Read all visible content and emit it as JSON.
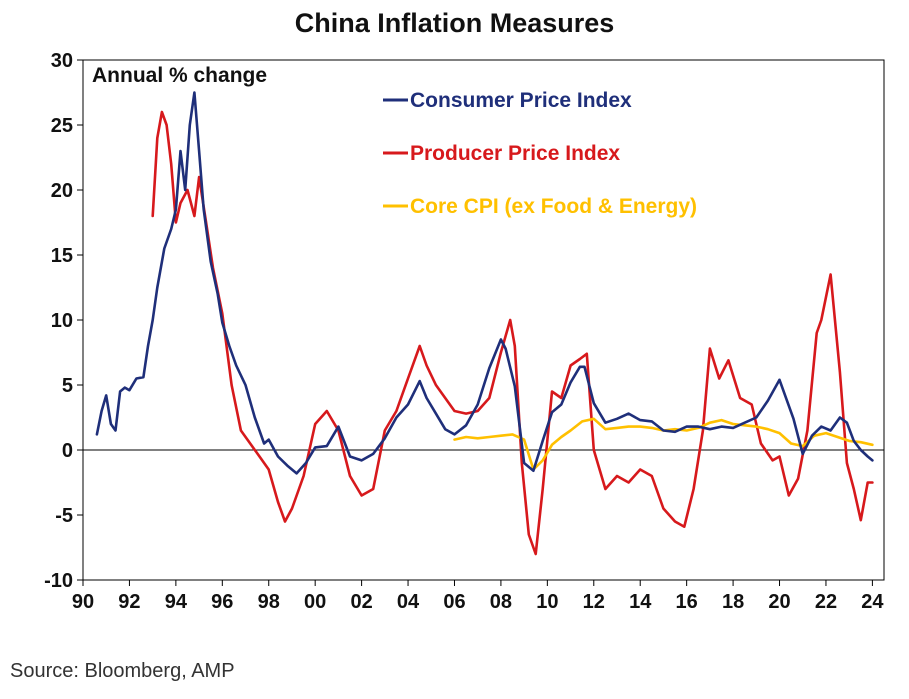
{
  "title": "China Inflation Measures",
  "source": "Source: Bloomberg, AMP",
  "chart_data": {
    "type": "line",
    "title": "China Inflation Measures",
    "ylabel": "Annual % change",
    "xlabel": "",
    "ylim": [
      -10,
      30
    ],
    "xlim": [
      1990,
      2024.5
    ],
    "y_ticks": [
      30,
      25,
      20,
      15,
      10,
      5,
      0,
      -5,
      -10
    ],
    "x_tick_labels": [
      {
        "year": 1990,
        "label": "90"
      },
      {
        "year": 1992,
        "label": "92"
      },
      {
        "year": 1994,
        "label": "94"
      },
      {
        "year": 1996,
        "label": "96"
      },
      {
        "year": 1998,
        "label": "98"
      },
      {
        "year": 2000,
        "label": "00"
      },
      {
        "year": 2002,
        "label": "02"
      },
      {
        "year": 2004,
        "label": "04"
      },
      {
        "year": 2006,
        "label": "06"
      },
      {
        "year": 2008,
        "label": "08"
      },
      {
        "year": 2010,
        "label": "10"
      },
      {
        "year": 2012,
        "label": "12"
      },
      {
        "year": 2014,
        "label": "14"
      },
      {
        "year": 2016,
        "label": "16"
      },
      {
        "year": 2018,
        "label": "18"
      },
      {
        "year": 2020,
        "label": "20"
      },
      {
        "year": 2022,
        "label": "22"
      },
      {
        "year": 2024,
        "label": "24"
      }
    ],
    "grid": false,
    "legend_position": "top-center",
    "series": [
      {
        "name": "Consumer Price Index",
        "color": "#1f2f7a",
        "x": [
          1990.6,
          1990.8,
          1991.0,
          1991.2,
          1991.4,
          1991.6,
          1991.8,
          1992.0,
          1992.3,
          1992.6,
          1992.8,
          1993.0,
          1993.2,
          1993.5,
          1993.8,
          1994.0,
          1994.2,
          1994.4,
          1994.6,
          1994.8,
          1995.0,
          1995.2,
          1995.5,
          1995.8,
          1996.0,
          1996.3,
          1996.6,
          1997.0,
          1997.4,
          1997.8,
          1998.0,
          1998.4,
          1998.8,
          1999.2,
          1999.6,
          2000.0,
          2000.5,
          2001.0,
          2001.5,
          2002.0,
          2002.5,
          2003.0,
          2003.5,
          2004.0,
          2004.5,
          2004.8,
          2005.2,
          2005.6,
          2006.0,
          2006.5,
          2007.0,
          2007.5,
          2008.0,
          2008.2,
          2008.6,
          2009.0,
          2009.4,
          2009.8,
          2010.2,
          2010.6,
          2011.0,
          2011.4,
          2011.6,
          2012.0,
          2012.5,
          2013.0,
          2013.5,
          2014.0,
          2014.5,
          2015.0,
          2015.5,
          2016.0,
          2016.5,
          2017.0,
          2017.5,
          2018.0,
          2018.5,
          2019.0,
          2019.5,
          2020.0,
          2020.3,
          2020.6,
          2021.0,
          2021.4,
          2021.8,
          2022.2,
          2022.6,
          2022.9,
          2023.2,
          2023.5,
          2023.8,
          2024.0
        ],
        "values": [
          1.2,
          3.0,
          4.2,
          2.0,
          1.5,
          4.5,
          4.8,
          4.6,
          5.5,
          5.6,
          8.0,
          10.0,
          12.5,
          15.5,
          17.0,
          18.5,
          23.0,
          20.0,
          25.0,
          27.5,
          23.0,
          18.5,
          14.5,
          12.0,
          9.8,
          8.0,
          6.5,
          5.0,
          2.5,
          0.5,
          0.8,
          -0.5,
          -1.2,
          -1.8,
          -1.0,
          0.2,
          0.3,
          1.8,
          -0.5,
          -0.8,
          -0.3,
          0.9,
          2.5,
          3.5,
          5.3,
          4.0,
          2.8,
          1.6,
          1.2,
          1.9,
          3.5,
          6.3,
          8.5,
          7.8,
          4.9,
          -1.0,
          -1.6,
          0.7,
          2.9,
          3.5,
          5.2,
          6.4,
          6.4,
          3.6,
          2.1,
          2.4,
          2.8,
          2.3,
          2.2,
          1.5,
          1.4,
          1.8,
          1.8,
          1.6,
          1.8,
          1.7,
          2.1,
          2.5,
          3.8,
          5.4,
          3.9,
          2.4,
          -0.3,
          1.1,
          1.8,
          1.5,
          2.5,
          2.1,
          0.7,
          0.0,
          -0.5,
          -0.8
        ]
      },
      {
        "name": "Producer Price Index",
        "color": "#d7191c",
        "x": [
          1993.0,
          1993.2,
          1993.4,
          1993.6,
          1993.8,
          1994.0,
          1994.2,
          1994.5,
          1994.8,
          1995.0,
          1995.3,
          1995.6,
          1996.0,
          1996.4,
          1996.8,
          1997.2,
          1997.6,
          1998.0,
          1998.4,
          1998.7,
          1999.0,
          1999.5,
          2000.0,
          2000.5,
          2001.0,
          2001.5,
          2002.0,
          2002.5,
          2003.0,
          2003.5,
          2004.0,
          2004.5,
          2004.8,
          2005.2,
          2005.6,
          2006.0,
          2006.5,
          2007.0,
          2007.5,
          2008.0,
          2008.4,
          2008.6,
          2008.9,
          2009.2,
          2009.5,
          2009.8,
          2010.2,
          2010.6,
          2011.0,
          2011.4,
          2011.7,
          2012.0,
          2012.5,
          2013.0,
          2013.5,
          2014.0,
          2014.5,
          2015.0,
          2015.5,
          2015.9,
          2016.3,
          2016.7,
          2017.0,
          2017.4,
          2017.8,
          2018.3,
          2018.8,
          2019.2,
          2019.7,
          2020.0,
          2020.4,
          2020.8,
          2021.2,
          2021.6,
          2021.8,
          2022.2,
          2022.6,
          2022.9,
          2023.2,
          2023.5,
          2023.8,
          2024.0
        ],
        "values": [
          18.0,
          24.0,
          26.0,
          25.0,
          22.0,
          17.5,
          19.0,
          20.0,
          18.0,
          21.0,
          17.5,
          14.0,
          10.5,
          5.0,
          1.5,
          0.5,
          -0.5,
          -1.5,
          -4.0,
          -5.5,
          -4.5,
          -2.0,
          2.0,
          3.0,
          1.5,
          -2.0,
          -3.5,
          -3.0,
          1.5,
          3.0,
          5.5,
          8.0,
          6.5,
          5.0,
          4.0,
          3.0,
          2.8,
          3.0,
          4.0,
          7.5,
          10.0,
          8.0,
          -1.0,
          -6.5,
          -8.0,
          -3.0,
          4.5,
          4.0,
          6.5,
          7.0,
          7.4,
          0.0,
          -3.0,
          -2.0,
          -2.5,
          -1.5,
          -2.0,
          -4.5,
          -5.5,
          -5.9,
          -3.0,
          1.5,
          7.8,
          5.5,
          6.9,
          4.0,
          3.5,
          0.5,
          -0.8,
          -0.5,
          -3.5,
          -2.2,
          1.5,
          9.0,
          10.0,
          13.5,
          6.0,
          -1.0,
          -3.0,
          -5.4,
          -2.5,
          -2.5
        ]
      },
      {
        "name": "Core CPI (ex Food & Energy)",
        "color": "#ffc000",
        "x": [
          2006.0,
          2006.5,
          2007.0,
          2007.5,
          2008.0,
          2008.5,
          2009.0,
          2009.4,
          2009.8,
          2010.2,
          2010.6,
          2011.0,
          2011.5,
          2012.0,
          2012.5,
          2013.0,
          2013.5,
          2014.0,
          2014.5,
          2015.0,
          2015.5,
          2016.0,
          2016.5,
          2017.0,
          2017.5,
          2018.0,
          2018.5,
          2019.0,
          2019.5,
          2020.0,
          2020.5,
          2021.0,
          2021.5,
          2022.0,
          2022.5,
          2023.0,
          2023.5,
          2024.0
        ],
        "values": [
          0.8,
          1.0,
          0.9,
          1.0,
          1.1,
          1.2,
          0.8,
          -1.5,
          -0.8,
          0.4,
          1.0,
          1.5,
          2.2,
          2.4,
          1.6,
          1.7,
          1.8,
          1.8,
          1.7,
          1.5,
          1.6,
          1.5,
          1.7,
          2.1,
          2.3,
          2.0,
          1.9,
          1.8,
          1.6,
          1.3,
          0.5,
          0.3,
          1.1,
          1.3,
          1.0,
          0.7,
          0.6,
          0.4
        ]
      }
    ],
    "legend": [
      {
        "name": "Consumer Price Index",
        "color": "#1f2f7a"
      },
      {
        "name": "Producer Price Index",
        "color": "#d7191c"
      },
      {
        "name": "Core CPI (ex Food & Energy)",
        "color": "#ffc000"
      }
    ]
  }
}
